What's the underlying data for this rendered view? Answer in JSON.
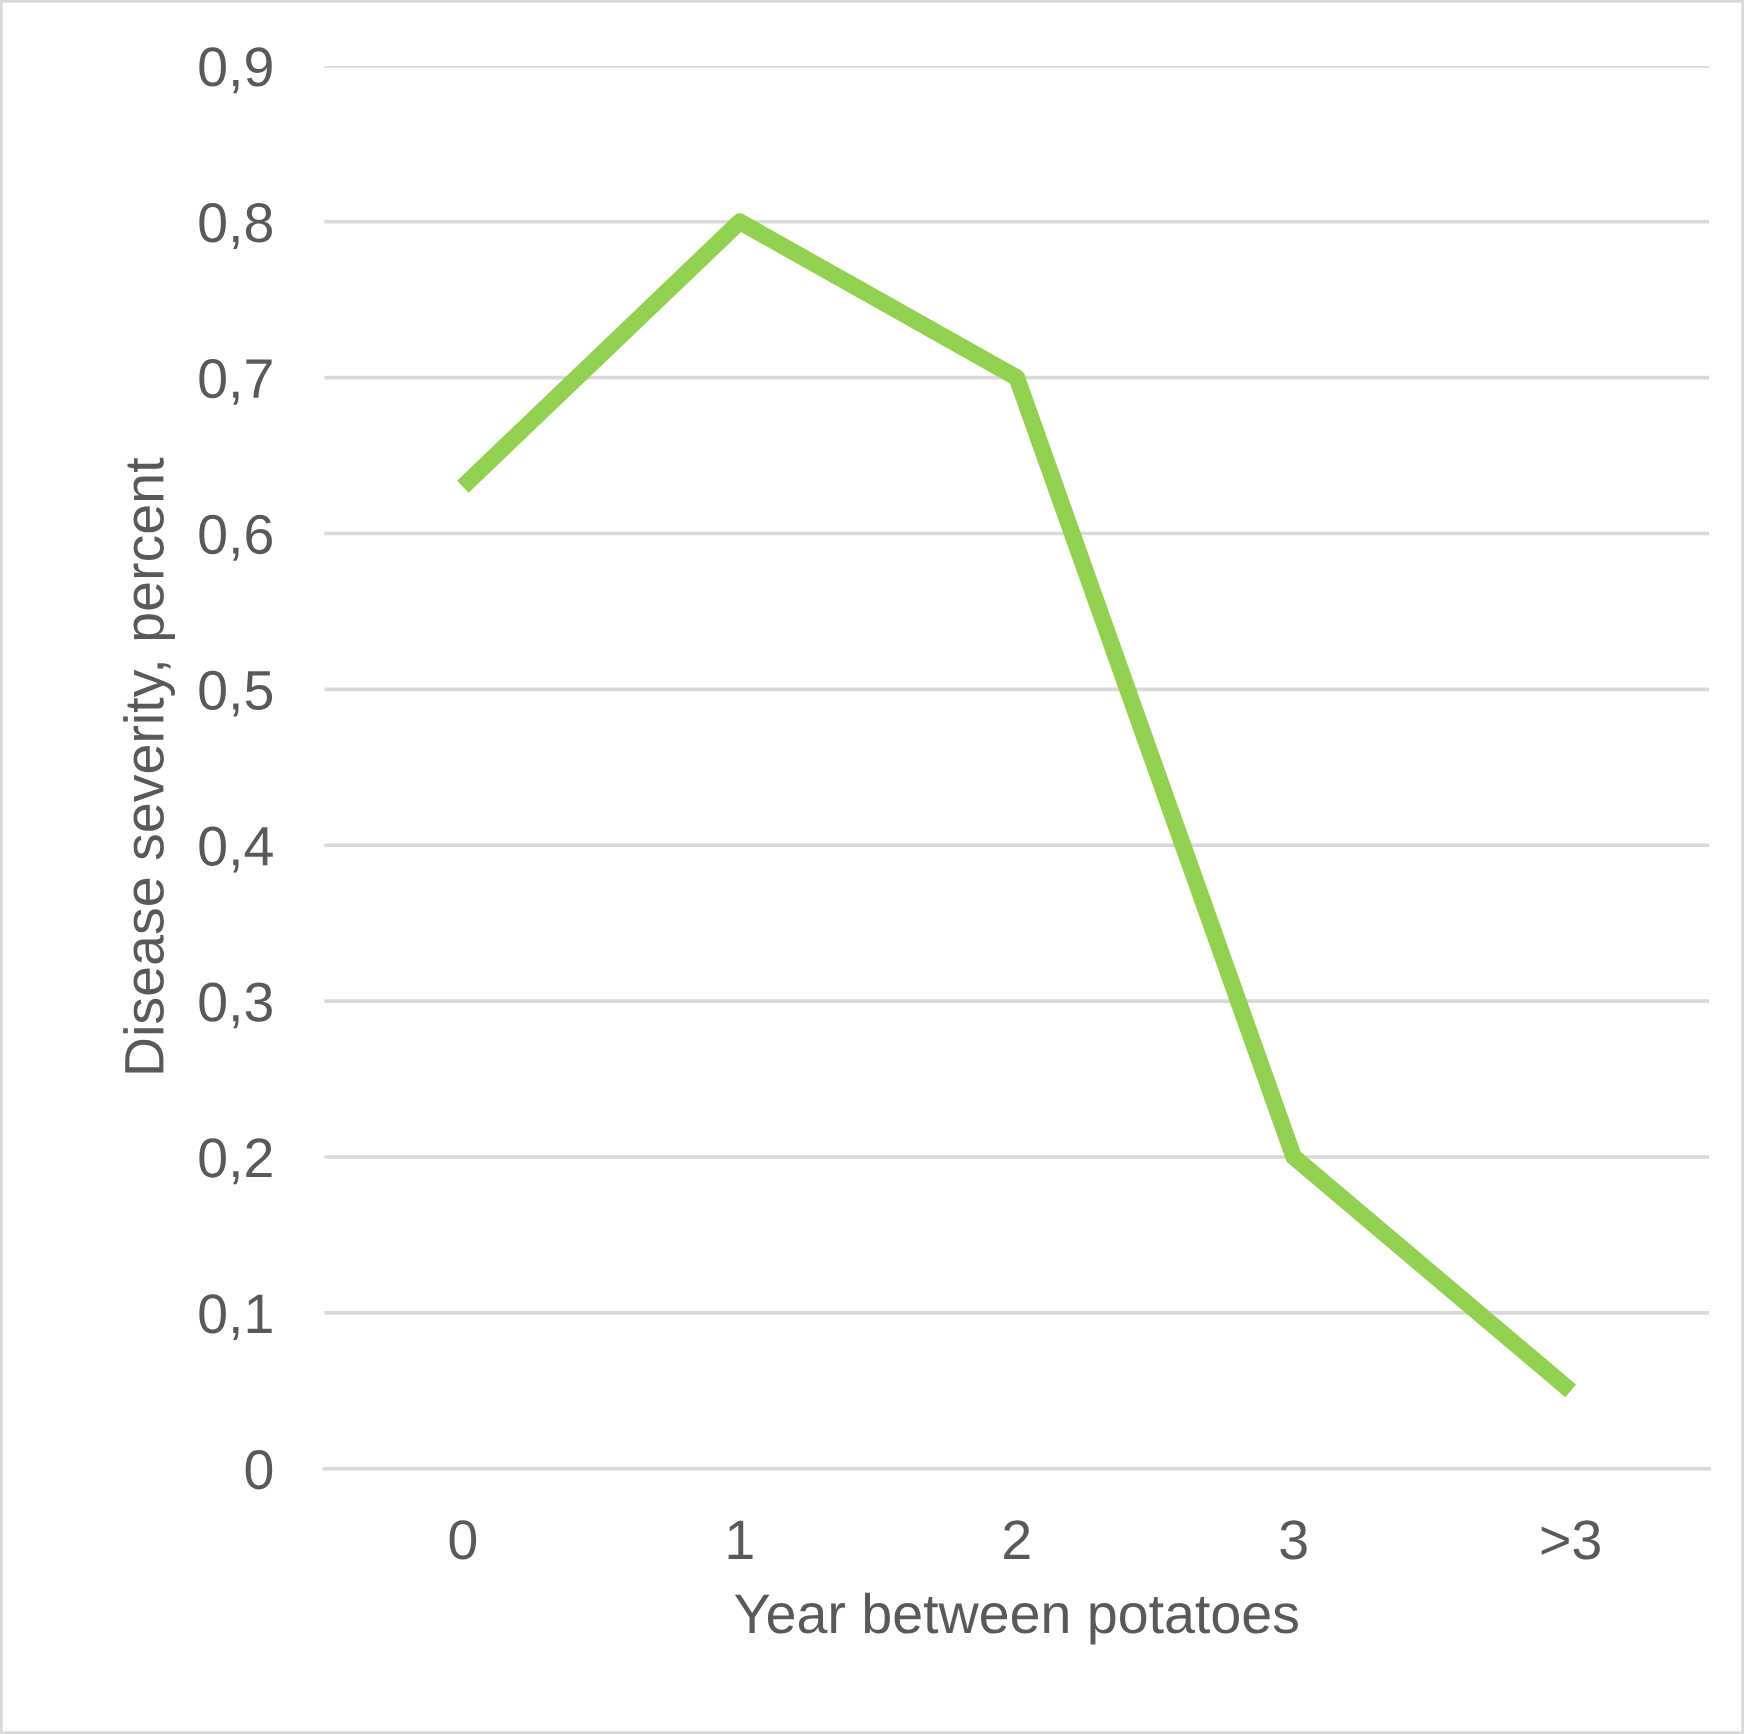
{
  "chart_data": {
    "type": "line",
    "xlabel": "Year between potatoes",
    "ylabel": "Disease severity, percent",
    "categories": [
      "0",
      "1",
      "2",
      "3",
      ">3"
    ],
    "series": [
      {
        "color": "#92d050",
        "values": [
          0.63,
          0.8,
          0.7,
          0.2,
          0.05
        ]
      }
    ],
    "ylim": [
      0,
      0.9
    ],
    "yticks": [
      0,
      {
        "value": 0.1,
        "label": "0,1"
      },
      {
        "value": 0.2,
        "label": "0,2"
      },
      {
        "value": 0.3,
        "label": "0,3"
      },
      {
        "value": 0.4,
        "label": "0,4"
      },
      {
        "value": 0.5,
        "label": "0,5"
      },
      {
        "value": 0.6,
        "label": "0,6"
      },
      {
        "value": 0.7,
        "label": "0,7"
      },
      {
        "value": 0.8,
        "label": "0,8"
      },
      {
        "value": 0.9,
        "label": "0,9"
      }
    ],
    "grid": "y",
    "marker": "none",
    "line_style": "solid",
    "legend": false
  }
}
